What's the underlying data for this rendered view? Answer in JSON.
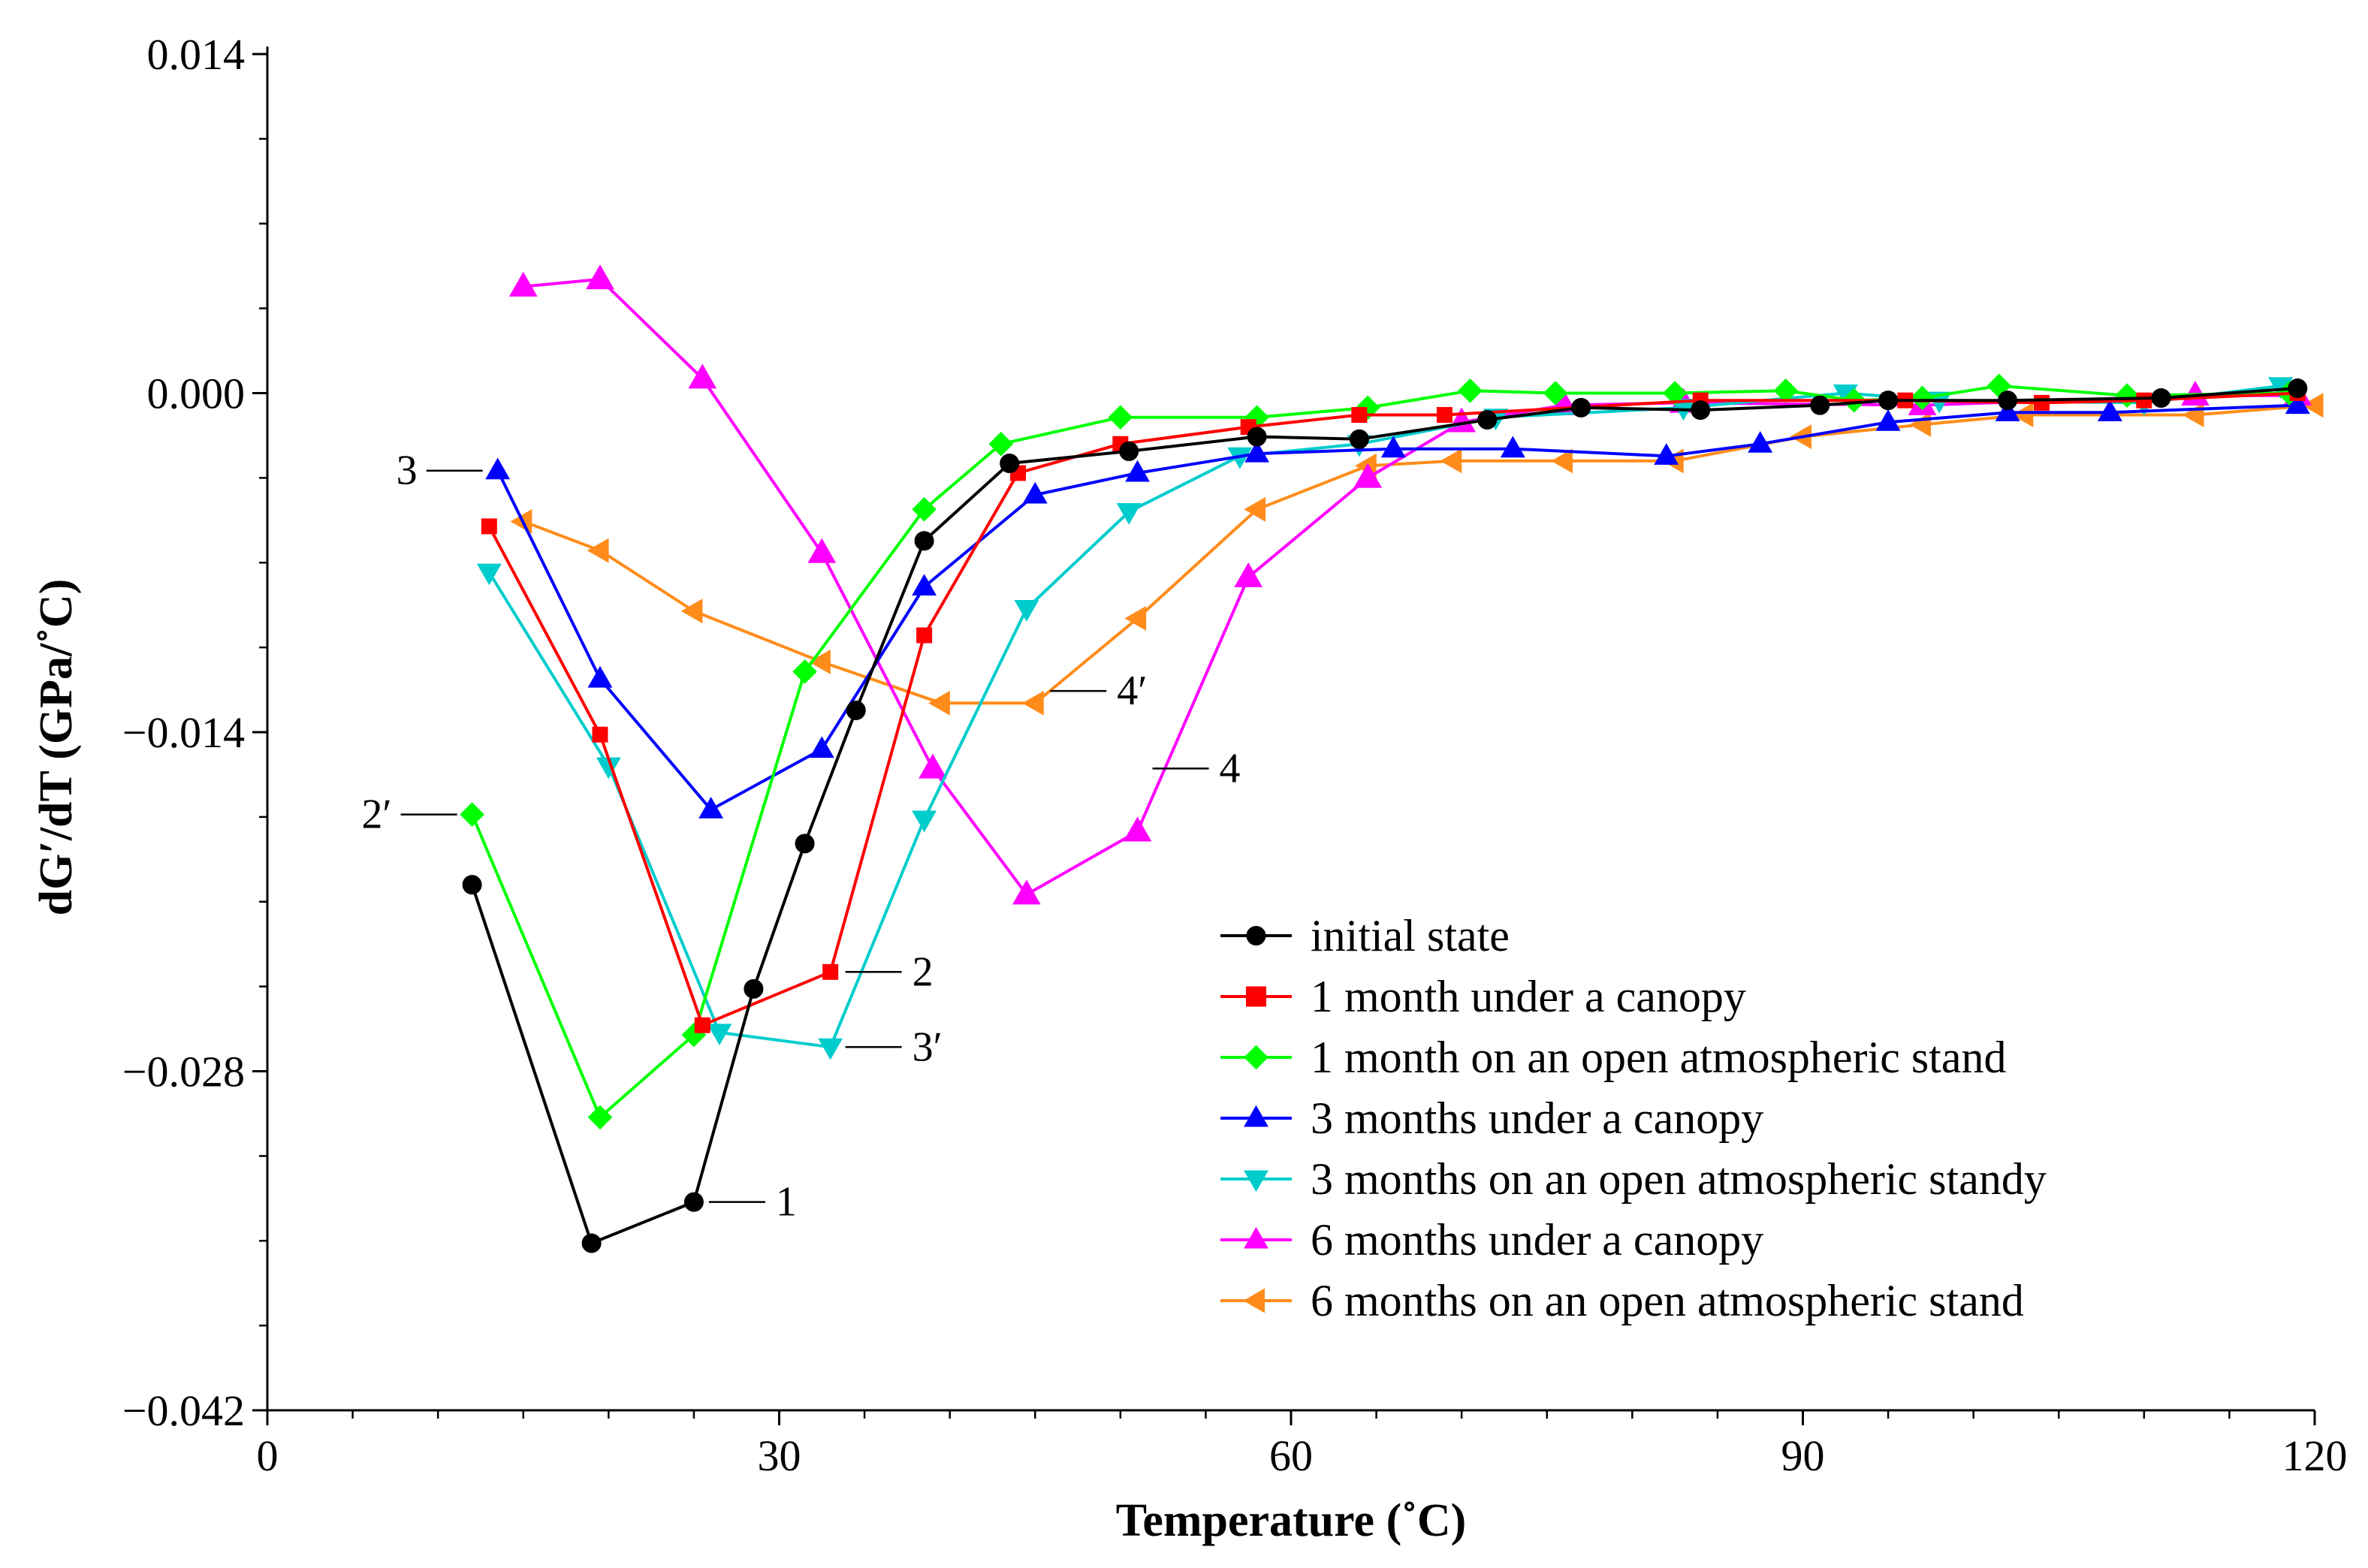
{
  "chart_data": {
    "type": "line",
    "title": "",
    "xlabel": "Temperature (˚C)",
    "ylabel": "dG′/dT (GPa/˚C)",
    "xlim": [
      0,
      120
    ],
    "ylim": [
      -0.042,
      0.014
    ],
    "xticks": [
      0,
      30,
      60,
      90,
      120
    ],
    "xtick_labels": [
      "0",
      "30",
      "60",
      "90",
      "120"
    ],
    "yticks": [
      0.014,
      0.0,
      -0.014,
      -0.028,
      -0.042
    ],
    "ytick_labels": [
      "0.014",
      "0.000",
      "−0.014",
      "−0.028",
      "−0.042"
    ],
    "grid": false,
    "legend_position": "lower-right",
    "series": [
      {
        "name": "initial state",
        "color": "#000000",
        "marker": "circle",
        "x": [
          12,
          19,
          25,
          28.5,
          31.5,
          34.5,
          38.5,
          43.5,
          50.5,
          58,
          64,
          71.5,
          77,
          84,
          91,
          95,
          102,
          111,
          119
        ],
        "y": [
          -0.0203,
          -0.0351,
          -0.0334,
          -0.0246,
          -0.0186,
          -0.0131,
          -0.0061,
          -0.0029,
          -0.0024,
          -0.0018,
          -0.0019,
          -0.0011,
          -0.0006,
          -0.0007,
          -0.0005,
          -0.0003,
          -0.0003,
          -0.0002,
          0.0002
        ]
      },
      {
        "name": "1 month under a canopy",
        "color": "#ff0000",
        "marker": "square",
        "x": [
          13,
          19.5,
          25.5,
          33,
          38.5,
          44,
          50,
          57.5,
          64,
          69,
          84,
          96,
          104,
          110,
          119
        ],
        "y": [
          -0.0055,
          -0.0141,
          -0.0261,
          -0.0239,
          -0.01,
          -0.0033,
          -0.0021,
          -0.0014,
          -0.0009,
          -0.0009,
          -0.0003,
          -0.0003,
          -0.0004,
          -0.0003,
          0.0
        ]
      },
      {
        "name": "1 month on an open atmospheric stand",
        "color": "#00ff00",
        "marker": "diamond",
        "x": [
          12,
          19.5,
          25,
          31.5,
          38.5,
          43,
          50,
          58,
          64.5,
          70.5,
          75.5,
          82.5,
          89,
          93,
          97,
          101.5,
          109,
          118.5
        ],
        "y": [
          -0.0174,
          -0.0299,
          -0.0265,
          -0.0115,
          -0.0048,
          -0.0021,
          -0.001,
          -0.001,
          -0.0006,
          0.0001,
          0.0,
          0.0,
          0.0001,
          -0.0003,
          -0.0002,
          0.0003,
          -0.0001,
          0.0
        ]
      },
      {
        "name": "3 months under a canopy",
        "color": "#0000ff",
        "marker": "triangle-up",
        "x": [
          13.5,
          19.5,
          26,
          32.5,
          38.5,
          45,
          51,
          58,
          66,
          73,
          82,
          87.5,
          95,
          102,
          108,
          119
        ],
        "y": [
          -0.0032,
          -0.0118,
          -0.0172,
          -0.0147,
          -0.008,
          -0.0042,
          -0.0033,
          -0.0025,
          -0.0023,
          -0.0023,
          -0.0026,
          -0.0021,
          -0.0012,
          -0.0008,
          -0.0008,
          -0.0005
        ]
      },
      {
        "name": "3 months on an open atmospheric standy",
        "color": "#00cccc",
        "marker": "triangle-down",
        "x": [
          13,
          20,
          26.5,
          33,
          38.5,
          44.5,
          50.5,
          57,
          64,
          72,
          83,
          92.5,
          98,
          110,
          118
        ],
        "y": [
          -0.0074,
          -0.0154,
          -0.0264,
          -0.027,
          -0.0176,
          -0.0089,
          -0.0049,
          -0.0026,
          -0.0021,
          -0.001,
          -0.0006,
          0.0,
          -0.0003,
          -0.0004,
          0.0003
        ]
      },
      {
        "name": "6 months under a canopy",
        "color": "#ff00ff",
        "marker": "triangle-up",
        "x": [
          15,
          19.5,
          25.5,
          32.5,
          39,
          44.5,
          51,
          57.5,
          64.5,
          70,
          76,
          83,
          97,
          113,
          119
        ],
        "y": [
          0.0044,
          0.0047,
          0.0006,
          -0.0066,
          -0.0155,
          -0.0207,
          -0.0181,
          -0.0076,
          -0.0035,
          -0.0012,
          -0.0005,
          -0.0004,
          -0.0005,
          -0.0001,
          -0.0001
        ]
      },
      {
        "name": "6 months on an open atmospheric stand",
        "color": "#ff8c1a",
        "marker": "triangle-left",
        "x": [
          15,
          19.5,
          25,
          32.5,
          39.5,
          45,
          51,
          58,
          64.5,
          69.5,
          76,
          82.5,
          90,
          97,
          103,
          113,
          120
        ],
        "y": [
          -0.0053,
          -0.0065,
          -0.009,
          -0.0111,
          -0.0128,
          -0.0128,
          -0.0093,
          -0.0048,
          -0.003,
          -0.0028,
          -0.0028,
          -0.0028,
          -0.0018,
          -0.0013,
          -0.0009,
          -0.0009,
          -0.0005
        ]
      }
    ],
    "annotations": [
      {
        "text": "1",
        "series_x": 25,
        "series_y": -0.0334,
        "side": "right"
      },
      {
        "text": "2",
        "series_x": 33,
        "series_y": -0.0239,
        "side": "right"
      },
      {
        "text": "2′",
        "series_x": 12,
        "series_y": -0.0174,
        "side": "left"
      },
      {
        "text": "3",
        "series_x": 13.5,
        "series_y": -0.0032,
        "side": "left"
      },
      {
        "text": "3′",
        "series_x": 33,
        "series_y": -0.027,
        "side": "right"
      },
      {
        "text": "4",
        "series_x": 51,
        "series_y": -0.0155,
        "side": "right"
      },
      {
        "text": "4′",
        "series_x": 45,
        "series_y": -0.0123,
        "side": "right"
      }
    ]
  }
}
